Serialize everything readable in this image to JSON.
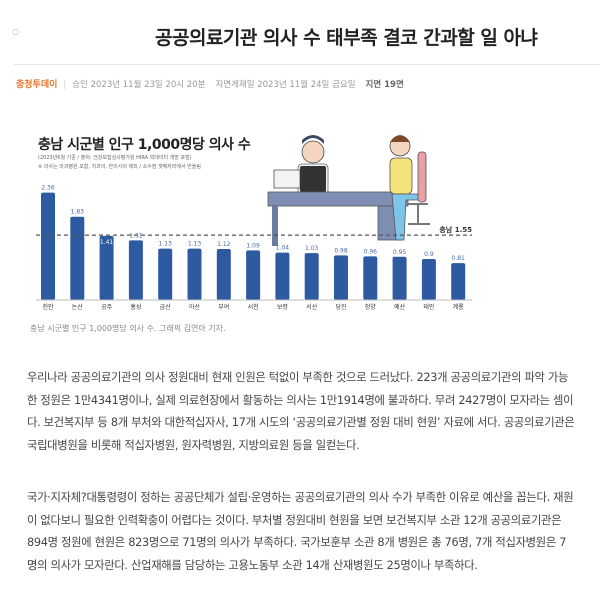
{
  "article": {
    "title": "공공의료기관 의사 수 태부족 결코 간과할 일 아냐",
    "source": "충청투데이",
    "approved": "승인 2023년 11월 23일 20시 20분",
    "print_date": "지면게재일 2023년 11월 24일 금요일",
    "page": "지면 19면",
    "caption": "충남 시군별 인구 1,000명당 의사 수. 그래픽 김연아 기자.",
    "paragraphs": [
      "우리나라 공공의료기관의 의사 정원대비 현재 인원은 턱없이 부족한 것으로 드러났다. 223개 공공의료기관의 파악 가능한 정원은 1만4341명이나, 실제 의료현장에서 활동하는 의사는 1만1914명에 불과하다. 무려 2427명이 모자라는 셈이다. 보건복지부 등 8개 부처와 대한적십자사, 17개 시도의 ‘공공의료기관별 정원 대비 현원’ 자료에 서다. 공공의료기관은 국립대병원을 비롯해 적십자병원, 원자력병원, 지방의료원 등을 일컫는다.",
      "국가·지자체?대통령령이 정하는 공공단체가 설립·운영하는 공공의료기관의 의사 수가 부족한 이유로 예산을 꼽는다. 재원이 없다보니 필요한 인력확충이 어렵다는 것이다. 부처별 정원대비 현원을 보면 보건복지부 소관 12개 공공의료기관은 894명 정원에 현원은 823명으로 71명의 의사가 부족하다. 국가보훈부 소관 8개 병원은 총 76명, 7개 적십자병원은 7명의 의사가 모자란다. 산업재해를 담당하는 고용노동부 소관 14개 산재병원도 25명이나 부족하다."
    ]
  },
  "chart_data": {
    "type": "bar",
    "title": "충남 시군별 인구 1,000명당 의사 수",
    "subtitle": [
      "(2023년6월 기준 / 출처: 건강보험심사평가원 HIRA 빅데이터 개방 포털)",
      "※ 의사는 의과병원 포함, 치과의, 한의사의 제외 / 소수점 셋째자리에서 반올림"
    ],
    "categories": [
      "천안",
      "논산",
      "공주",
      "홍성",
      "금산",
      "아산",
      "부여",
      "서천",
      "보령",
      "서산",
      "당진",
      "청양",
      "예산",
      "태안",
      "계룡"
    ],
    "values": [
      2.36,
      1.83,
      1.41,
      1.31,
      1.13,
      1.13,
      1.12,
      1.09,
      1.04,
      1.03,
      0.98,
      0.96,
      0.95,
      0.9,
      0.81
    ],
    "value_labels": [
      "2.36",
      "1.83",
      "1.41",
      "1.31",
      "1.13",
      "1.13",
      "1.12",
      "1.09",
      "1.04",
      "1.03",
      "0.98",
      "0.96",
      "0.95",
      "0.9",
      "0.81"
    ],
    "reference_line": {
      "label": "충남 1.55",
      "value": 1.55
    },
    "bar_color": "#2d5aa0",
    "grid": false
  }
}
